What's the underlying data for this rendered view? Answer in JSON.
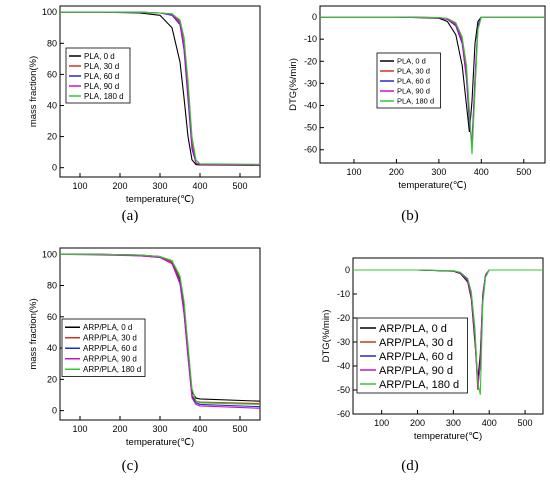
{
  "panel_labels": [
    "(a)",
    "(b)",
    "(c)",
    "(d)"
  ],
  "chart_data": [
    {
      "type": "line",
      "xlabel": "temperature(℃)",
      "ylabel": "mass fraction(%)",
      "xlim": [
        50,
        550
      ],
      "ylim": [
        -6,
        104
      ],
      "xticks": [
        100,
        200,
        300,
        400,
        500
      ],
      "yticks": [
        0,
        20,
        40,
        60,
        80,
        100
      ],
      "legend_position": "center-left",
      "series": [
        {
          "name": "PLA,  0 d",
          "color": "#000000",
          "x": [
            50,
            150,
            250,
            300,
            330,
            350,
            360,
            370,
            380,
            390,
            400,
            550
          ],
          "y": [
            100,
            100,
            99.5,
            98,
            90,
            68,
            45,
            20,
            5,
            2,
            1.8,
            1.5
          ]
        },
        {
          "name": "PLA, 30 d",
          "color": "#d2321e",
          "x": [
            50,
            150,
            250,
            300,
            330,
            350,
            360,
            370,
            380,
            390,
            400,
            550
          ],
          "y": [
            100,
            100,
            100,
            99.5,
            99,
            94,
            80,
            50,
            16,
            3,
            2,
            1.8
          ]
        },
        {
          "name": "PLA, 60 d",
          "color": "#2828c8",
          "x": [
            50,
            150,
            250,
            300,
            330,
            350,
            360,
            370,
            380,
            390,
            400,
            550
          ],
          "y": [
            100,
            100,
            100,
            99.5,
            98,
            92,
            76,
            44,
            12,
            3,
            2.2,
            2
          ]
        },
        {
          "name": "PLA, 90 d",
          "color": "#c814c8",
          "x": [
            50,
            150,
            250,
            300,
            330,
            350,
            360,
            370,
            380,
            390,
            400,
            550
          ],
          "y": [
            100,
            100,
            100,
            99.5,
            98.5,
            93,
            78,
            47,
            14,
            3,
            2,
            1.8
          ]
        },
        {
          "name": "PLA, 180 d",
          "color": "#32c832",
          "x": [
            50,
            150,
            250,
            300,
            330,
            350,
            360,
            370,
            380,
            390,
            400,
            550
          ],
          "y": [
            100,
            100,
            100,
            99.5,
            99,
            95,
            84,
            56,
            20,
            5,
            2.5,
            2.2
          ]
        }
      ]
    },
    {
      "type": "line",
      "xlabel": "temperature(℃)",
      "ylabel": "DTG(%/min)",
      "xlim": [
        20,
        550
      ],
      "ylim": [
        -66,
        5
      ],
      "xticks": [
        100,
        200,
        300,
        400,
        500
      ],
      "yticks": [
        0,
        -10,
        -20,
        -30,
        -40,
        -50,
        -60
      ],
      "legend_position": "top-right",
      "series": [
        {
          "name": "PLA, 0 d",
          "color": "#000000",
          "x": [
            20,
            200,
            300,
            320,
            340,
            355,
            365,
            372,
            378,
            385,
            392,
            400,
            550
          ],
          "y": [
            0,
            0,
            -0.5,
            -2,
            -8,
            -22,
            -40,
            -52,
            -38,
            -12,
            -2,
            0,
            0
          ]
        },
        {
          "name": "PLA, 30 d",
          "color": "#d2321e",
          "x": [
            20,
            200,
            300,
            320,
            340,
            355,
            365,
            372,
            378,
            385,
            392,
            400,
            550
          ],
          "y": [
            0,
            0,
            -0.2,
            -0.8,
            -3,
            -10,
            -25,
            -45,
            -59,
            -30,
            -5,
            0,
            0
          ]
        },
        {
          "name": "PLA, 60 d",
          "color": "#2828c8",
          "x": [
            20,
            200,
            300,
            320,
            340,
            355,
            365,
            372,
            378,
            385,
            392,
            400,
            550
          ],
          "y": [
            0,
            0,
            -0.3,
            -1,
            -4,
            -12,
            -28,
            -48,
            -57,
            -28,
            -4,
            0,
            0
          ]
        },
        {
          "name": "PLA, 90 d",
          "color": "#c814c8",
          "x": [
            20,
            200,
            300,
            320,
            340,
            355,
            365,
            372,
            378,
            385,
            392,
            400,
            550
          ],
          "y": [
            0,
            0,
            -0.3,
            -1,
            -3.5,
            -11,
            -27,
            -46,
            -58,
            -29,
            -5,
            0,
            0
          ]
        },
        {
          "name": "PLA, 180 d",
          "color": "#32c832",
          "x": [
            20,
            200,
            300,
            320,
            340,
            355,
            365,
            372,
            378,
            385,
            392,
            400,
            550
          ],
          "y": [
            0,
            0,
            -0.2,
            -0.6,
            -2.5,
            -9,
            -22,
            -42,
            -62,
            -34,
            -6,
            0,
            0
          ]
        }
      ]
    },
    {
      "type": "line",
      "xlabel": "temperature(℃)",
      "ylabel": "mass fraction(%)",
      "xlim": [
        50,
        550
      ],
      "ylim": [
        -6,
        104
      ],
      "xticks": [
        100,
        200,
        300,
        400,
        500
      ],
      "yticks": [
        0,
        20,
        40,
        60,
        80,
        100
      ],
      "legend_position": "center-left",
      "series": [
        {
          "name": "ARP/PLA, 0 d",
          "color": "#000000",
          "x": [
            50,
            150,
            250,
            300,
            330,
            350,
            360,
            370,
            380,
            390,
            400,
            550
          ],
          "y": [
            100,
            100,
            99.5,
            98.5,
            95,
            84,
            66,
            38,
            12,
            8,
            7.5,
            6
          ]
        },
        {
          "name": "ARP/PLA, 30 d",
          "color": "#d2321e",
          "x": [
            50,
            150,
            250,
            300,
            330,
            350,
            360,
            370,
            380,
            390,
            400,
            550
          ],
          "y": [
            100,
            100,
            99.5,
            98.5,
            95,
            83,
            64,
            36,
            10,
            6,
            5.5,
            4.5
          ]
        },
        {
          "name": "ARP/PLA, 60 d",
          "color": "#2828c8",
          "x": [
            50,
            150,
            250,
            300,
            330,
            350,
            360,
            370,
            380,
            390,
            400,
            550
          ],
          "y": [
            100,
            100,
            99,
            98,
            94,
            82,
            63,
            35,
            9,
            5,
            4,
            2.5
          ]
        },
        {
          "name": "ARP/PLA, 90 d",
          "color": "#c814c8",
          "x": [
            50,
            150,
            250,
            300,
            330,
            350,
            360,
            370,
            380,
            390,
            400,
            550
          ],
          "y": [
            100,
            99.5,
            99,
            98,
            94,
            81,
            62,
            34,
            8,
            4,
            3,
            1.5
          ]
        },
        {
          "name": "ARP/PLA, 180 d",
          "color": "#32c832",
          "x": [
            50,
            150,
            250,
            300,
            330,
            350,
            360,
            370,
            380,
            390,
            400,
            550
          ],
          "y": [
            100,
            100,
            99.5,
            98.5,
            96,
            86,
            70,
            42,
            14,
            6,
            5,
            4
          ]
        }
      ]
    },
    {
      "type": "line",
      "xlabel": "temperature(℃)",
      "ylabel": "DTG(%/min)",
      "xlim": [
        20,
        550
      ],
      "ylim": [
        -60,
        5
      ],
      "xticks": [
        100,
        200,
        300,
        400,
        500
      ],
      "yticks": [
        0,
        -10,
        -20,
        -30,
        -40,
        -50,
        -60
      ],
      "legend_position": "center-left",
      "series": [
        {
          "name": "ARP/PLA,  0 d",
          "color": "#000000",
          "x": [
            20,
            200,
            300,
            320,
            340,
            350,
            360,
            368,
            375,
            382,
            390,
            400,
            550
          ],
          "y": [
            0,
            0,
            -0.5,
            -1.5,
            -5,
            -12,
            -30,
            -46,
            -35,
            -10,
            -2,
            0,
            0
          ]
        },
        {
          "name": "ARP/PLA,  30 d",
          "color": "#d2321e",
          "x": [
            20,
            200,
            300,
            320,
            340,
            350,
            360,
            368,
            375,
            382,
            390,
            400,
            550
          ],
          "y": [
            0,
            0,
            -0.4,
            -1.2,
            -4.5,
            -11,
            -28,
            -50,
            -38,
            -11,
            -2,
            0,
            0
          ]
        },
        {
          "name": "ARP/PLA,  60 d",
          "color": "#2828c8",
          "x": [
            20,
            200,
            300,
            320,
            340,
            350,
            360,
            368,
            375,
            382,
            390,
            400,
            550
          ],
          "y": [
            0,
            0,
            -0.4,
            -1.2,
            -4,
            -10,
            -26,
            -47,
            -40,
            -12,
            -2,
            0,
            0
          ]
        },
        {
          "name": "ARP/PLA,  90 d",
          "color": "#c814c8",
          "x": [
            20,
            200,
            300,
            320,
            340,
            350,
            360,
            368,
            375,
            382,
            390,
            400,
            550
          ],
          "y": [
            0,
            0,
            -0.4,
            -1.3,
            -4.5,
            -11,
            -27,
            -49,
            -39,
            -11,
            -2,
            0,
            0
          ]
        },
        {
          "name": "ARP/PLA,  180 d",
          "color": "#32c832",
          "x": [
            20,
            200,
            300,
            320,
            340,
            350,
            360,
            368,
            375,
            382,
            390,
            400,
            550
          ],
          "y": [
            0,
            0,
            -0.3,
            -1,
            -3.5,
            -9,
            -24,
            -47,
            -52,
            -14,
            -3,
            0,
            0
          ]
        }
      ]
    }
  ]
}
